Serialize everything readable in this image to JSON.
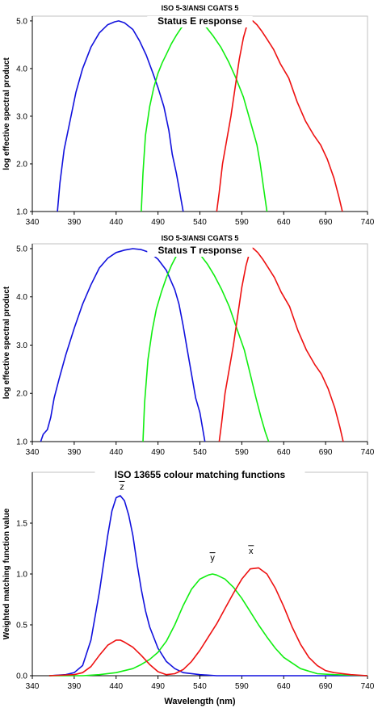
{
  "colors": {
    "blue": "#1111dd",
    "green": "#11ee11",
    "red": "#ee1111",
    "plot_bg": "#ffffff",
    "grid": "#c0c0c0"
  },
  "chart_data": [
    {
      "type": "line",
      "supertitle": "ISO 5-3/ANSI CGATS 5",
      "title": "Status E response",
      "xlabel": "",
      "ylabel": "log effective spectral product",
      "xlim": [
        340,
        740
      ],
      "ylim": [
        1.0,
        5.1
      ],
      "xticks": [
        "340",
        "390",
        "440",
        "490",
        "540",
        "590",
        "640",
        "690",
        "740"
      ],
      "yticks": [
        "1.0",
        "2.0",
        "3.0",
        "4.0",
        "5.0"
      ],
      "series": [
        {
          "color": "blue",
          "x": [
            370,
            373,
            378,
            385,
            392,
            400,
            410,
            420,
            430,
            438,
            443,
            450,
            460,
            468,
            476,
            484,
            490,
            497,
            503,
            507,
            512,
            515,
            518,
            520
          ],
          "y": [
            1.0,
            1.6,
            2.3,
            2.9,
            3.5,
            4.0,
            4.45,
            4.75,
            4.92,
            4.98,
            5.0,
            4.96,
            4.82,
            4.58,
            4.28,
            3.9,
            3.6,
            3.2,
            2.7,
            2.2,
            1.8,
            1.5,
            1.2,
            1.0
          ]
        },
        {
          "color": "green",
          "x": [
            470,
            472,
            475,
            480,
            485,
            490,
            495,
            500,
            506,
            512,
            518,
            526,
            533,
            540,
            548,
            556,
            565,
            574,
            583,
            592,
            600,
            608,
            612,
            616,
            620
          ],
          "y": [
            1.0,
            1.8,
            2.6,
            3.2,
            3.6,
            3.9,
            4.12,
            4.3,
            4.52,
            4.7,
            4.86,
            4.97,
            5.0,
            4.97,
            4.86,
            4.68,
            4.45,
            4.15,
            3.8,
            3.4,
            2.9,
            2.4,
            2.0,
            1.5,
            1.0
          ]
        },
        {
          "color": "red",
          "x": [
            560,
            563,
            567,
            572,
            577,
            582,
            587,
            592,
            596,
            600,
            603,
            608,
            614,
            620,
            628,
            636,
            646,
            656,
            666,
            676,
            684,
            692,
            700,
            706,
            710
          ],
          "y": [
            1.0,
            1.4,
            2.0,
            2.5,
            3.0,
            3.6,
            4.2,
            4.65,
            4.9,
            5.02,
            5.0,
            4.92,
            4.78,
            4.62,
            4.4,
            4.1,
            3.8,
            3.3,
            2.9,
            2.6,
            2.4,
            2.1,
            1.7,
            1.3,
            1.0
          ]
        }
      ]
    },
    {
      "type": "line",
      "supertitle": "ISO 5-3/ANSI CGATS 5",
      "title": "Status T response",
      "xlabel": "",
      "ylabel": "log effective spectral product",
      "xlim": [
        340,
        740
      ],
      "ylim": [
        1.0,
        5.1
      ],
      "xticks": [
        "340",
        "390",
        "440",
        "490",
        "540",
        "590",
        "640",
        "690",
        "740"
      ],
      "yticks": [
        "1.0",
        "2.0",
        "3.0",
        "4.0",
        "5.0"
      ],
      "series": [
        {
          "color": "blue",
          "x": [
            350,
            353,
            358,
            362,
            366,
            372,
            380,
            390,
            400,
            410,
            420,
            430,
            440,
            450,
            460,
            470,
            480,
            490,
            500,
            510,
            515,
            520,
            525,
            530,
            535,
            540,
            543,
            546
          ],
          "y": [
            1.0,
            1.15,
            1.25,
            1.5,
            1.9,
            2.3,
            2.8,
            3.35,
            3.85,
            4.25,
            4.6,
            4.8,
            4.92,
            4.97,
            5.0,
            4.98,
            4.92,
            4.78,
            4.55,
            4.15,
            3.85,
            3.4,
            2.9,
            2.4,
            1.9,
            1.6,
            1.3,
            1.0
          ]
        },
        {
          "color": "green",
          "x": [
            472,
            474,
            478,
            483,
            488,
            494,
            500,
            506,
            512,
            518,
            525,
            533,
            541,
            549,
            557,
            566,
            575,
            584,
            593,
            600,
            607,
            613,
            618,
            622
          ],
          "y": [
            1.0,
            1.8,
            2.7,
            3.3,
            3.75,
            4.1,
            4.4,
            4.65,
            4.85,
            4.96,
            5.0,
            4.97,
            4.86,
            4.68,
            4.45,
            4.15,
            3.8,
            3.35,
            2.9,
            2.4,
            1.9,
            1.5,
            1.2,
            1.0
          ]
        },
        {
          "color": "red",
          "x": [
            563,
            566,
            570,
            575,
            580,
            585,
            590,
            595,
            599,
            602,
            604,
            609,
            615,
            621,
            629,
            637,
            647,
            657,
            667,
            677,
            685,
            693,
            701,
            707,
            711
          ],
          "y": [
            1.0,
            1.4,
            2.0,
            2.5,
            3.0,
            3.6,
            4.2,
            4.65,
            4.9,
            5.02,
            5.0,
            4.92,
            4.78,
            4.62,
            4.4,
            4.1,
            3.8,
            3.3,
            2.9,
            2.6,
            2.4,
            2.1,
            1.7,
            1.3,
            1.0
          ]
        }
      ]
    },
    {
      "type": "line",
      "supertitle": "",
      "title": "ISO 13655 colour matching functions",
      "xlabel": "Wavelength (nm)",
      "ylabel": "Weighted matching function value",
      "xlim": [
        340,
        740
      ],
      "ylim": [
        0.0,
        2.0
      ],
      "xticks": [
        "340",
        "390",
        "440",
        "490",
        "540",
        "590",
        "640",
        "690",
        "740"
      ],
      "yticks": [
        "0.0",
        "0.5",
        "1.0",
        "1.5"
      ],
      "annotations": [
        {
          "text": "z",
          "x": 447,
          "y": 1.83
        },
        {
          "text": "y",
          "x": 555,
          "y": 1.13
        },
        {
          "text": "x",
          "x": 601,
          "y": 1.2
        }
      ],
      "series": [
        {
          "color": "blue",
          "x": [
            360,
            380,
            390,
            400,
            410,
            420,
            425,
            430,
            435,
            440,
            445,
            450,
            455,
            460,
            465,
            470,
            475,
            480,
            490,
            500,
            510,
            520,
            540,
            560,
            580,
            640,
            700,
            740
          ],
          "y": [
            0.0,
            0.01,
            0.03,
            0.1,
            0.35,
            0.82,
            1.1,
            1.38,
            1.62,
            1.75,
            1.77,
            1.72,
            1.58,
            1.38,
            1.1,
            0.85,
            0.64,
            0.48,
            0.27,
            0.14,
            0.07,
            0.03,
            0.01,
            0.0,
            0.0,
            0.0,
            0.0,
            0.0
          ]
        },
        {
          "color": "green",
          "x": [
            360,
            400,
            420,
            440,
            460,
            470,
            480,
            490,
            500,
            510,
            520,
            530,
            540,
            550,
            555,
            560,
            570,
            580,
            590,
            600,
            610,
            620,
            630,
            640,
            660,
            680,
            700,
            740
          ],
          "y": [
            0.0,
            0.0,
            0.01,
            0.03,
            0.07,
            0.11,
            0.16,
            0.23,
            0.34,
            0.5,
            0.69,
            0.85,
            0.95,
            0.99,
            1.0,
            0.99,
            0.95,
            0.87,
            0.76,
            0.63,
            0.5,
            0.38,
            0.27,
            0.18,
            0.07,
            0.02,
            0.01,
            0.0
          ]
        },
        {
          "color": "red",
          "x": [
            360,
            390,
            400,
            410,
            420,
            430,
            440,
            445,
            450,
            460,
            470,
            480,
            490,
            500,
            510,
            520,
            530,
            540,
            550,
            560,
            570,
            580,
            590,
            600,
            610,
            620,
            630,
            640,
            650,
            660,
            670,
            680,
            690,
            700,
            720,
            740
          ],
          "y": [
            0.0,
            0.01,
            0.03,
            0.09,
            0.2,
            0.3,
            0.35,
            0.35,
            0.33,
            0.28,
            0.2,
            0.11,
            0.04,
            0.01,
            0.02,
            0.06,
            0.14,
            0.25,
            0.38,
            0.51,
            0.66,
            0.81,
            0.95,
            1.05,
            1.06,
            1.0,
            0.86,
            0.68,
            0.48,
            0.31,
            0.18,
            0.1,
            0.05,
            0.03,
            0.01,
            0.0
          ]
        }
      ]
    }
  ]
}
